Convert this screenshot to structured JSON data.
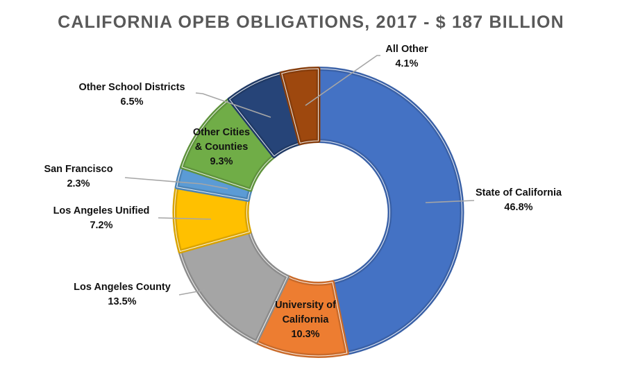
{
  "chart_data": {
    "type": "pie",
    "variant": "donut",
    "title": "CALIFORNIA OPEB OBLIGATIONS, 2017 - $ 187 BILLION",
    "total": "$ 187 billion",
    "unit": "%",
    "start_angle_deg": 0,
    "direction": "clockwise",
    "categories": [
      "State of California",
      "University of California",
      "Los Angeles County",
      "Los Angeles Unified",
      "San Francisco",
      "Other Cities & Counties",
      "Other School Districts",
      "All Other"
    ],
    "values": [
      46.8,
      10.3,
      13.5,
      7.2,
      2.3,
      9.3,
      6.5,
      4.1
    ],
    "value_labels": [
      "46.8%",
      "10.3%",
      "13.5%",
      "7.2%",
      "2.3%",
      "9.3%",
      "6.5%",
      "4.1%"
    ],
    "colors": [
      "#4472C4",
      "#ED7D31",
      "#A5A5A5",
      "#FFC000",
      "#5B9BD5",
      "#70AD47",
      "#264478",
      "#9E480E"
    ],
    "legend": "none (data labels with leader lines)"
  },
  "title": "CALIFORNIA OPEB OBLIGATIONS, 2017 - $ 187 BILLION",
  "labels": {
    "state_ca": {
      "name": "State of California",
      "value": "46.8%"
    },
    "uc": {
      "name1": "University of",
      "name2": "California",
      "value": "10.3%"
    },
    "la_county": {
      "name": "Los Angeles County",
      "value": "13.5%"
    },
    "lausd": {
      "name": "Los Angeles Unified",
      "value": "7.2%"
    },
    "sf": {
      "name": "San Francisco",
      "value": "2.3%"
    },
    "other_cities": {
      "name1": "Other Cities",
      "name2": "& Counties",
      "value": "9.3%"
    },
    "other_schools": {
      "name": "Other School Districts",
      "value": "6.5%"
    },
    "all_other": {
      "name": "All Other",
      "value": "4.1%"
    }
  }
}
